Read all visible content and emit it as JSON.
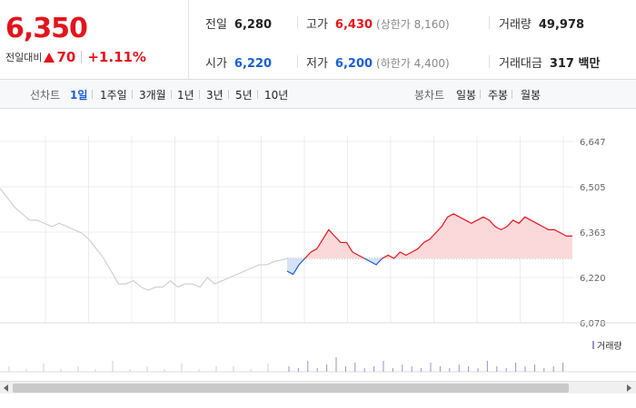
{
  "quote": {
    "price": "6,350",
    "change_label": "전일대비",
    "change_value": "70",
    "change_rate": "+1.11%",
    "prev_close": {
      "label": "전일",
      "value": "6,280"
    },
    "open": {
      "label": "시가",
      "value": "6,220"
    },
    "high": {
      "label": "고가",
      "value": "6,430",
      "limit_text": "(상한가 8,160)"
    },
    "low": {
      "label": "저가",
      "value": "6,200",
      "limit_text": "(하한가 4,400)"
    },
    "volume": {
      "label": "거래량",
      "value": "49,978"
    },
    "amount": {
      "label": "거래대금",
      "value": "317 백만"
    }
  },
  "line_tabs": {
    "label": "선차트",
    "items": [
      "1일",
      "1주일",
      "3개월",
      "1년",
      "3년",
      "5년",
      "10년"
    ],
    "active": "1일"
  },
  "candle_tabs": {
    "label": "봉차트",
    "items": [
      "일봉",
      "주봉",
      "월봉"
    ]
  },
  "chart_data": {
    "type": "line",
    "y_ticks": [
      "6,647",
      "6,505",
      "6,363",
      "6,220",
      "6,078"
    ],
    "ylim": [
      6078,
      6647
    ],
    "reference_price": 6280,
    "series": [
      {
        "values": [
          6500,
          6470,
          6440,
          6420,
          6400,
          6400,
          6390,
          6380,
          6390,
          6380,
          6370,
          6360,
          6340,
          6310,
          6280,
          6240,
          6200,
          6200,
          6210,
          6190,
          6180,
          6190,
          6190,
          6210,
          6190,
          6200,
          6200,
          6190,
          6220,
          6200,
          6210,
          6220,
          6230,
          6240,
          6250,
          6260,
          6260,
          6270,
          6275,
          6280
        ]
      },
      {
        "values": [
          6240,
          6230,
          6260,
          6280,
          6300,
          6310,
          6340,
          6370,
          6350,
          6330,
          6330,
          6300,
          6290,
          6280,
          6270,
          6260,
          6280,
          6290,
          6280,
          6300,
          6290,
          6300,
          6310,
          6330,
          6340,
          6360,
          6380,
          6410,
          6420,
          6410,
          6400,
          6390,
          6400,
          6410,
          6400,
          6380,
          6370,
          6380,
          6400,
          6390,
          6410,
          6400,
          6390,
          6380,
          6370,
          6370,
          6360,
          6350,
          6350
        ]
      }
    ],
    "volume_label": "거래량"
  },
  "colors": {
    "up": "#e3141b",
    "down": "#1a5ed1",
    "area_fill": "#fbd9da",
    "gray_line": "#c8c8c8"
  }
}
